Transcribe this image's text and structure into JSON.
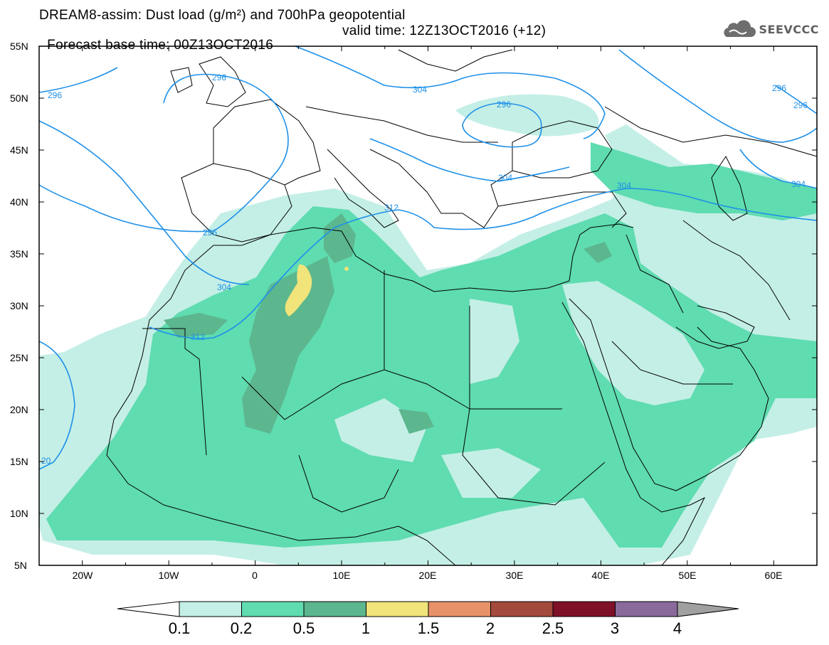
{
  "header": {
    "title_line1": "DREAM8-assim: Dust load (g/m²) and 700hPa geopotential",
    "forecast_base": "Forecast base time: 00Z13OCT2016",
    "valid_time": "valid time: 12Z13OCT2016 (+12)",
    "logo_text": "SEEVCCC"
  },
  "map": {
    "lon_range": [
      -25,
      65
    ],
    "lat_range": [
      5,
      55
    ],
    "lat_labels": [
      "55N",
      "50N",
      "45N",
      "40N",
      "35N",
      "30N",
      "25N",
      "20N",
      "15N",
      "10N",
      "5N"
    ],
    "lon_labels": [
      "20W",
      "10W",
      "0",
      "10E",
      "20E",
      "30E",
      "40E",
      "50E",
      "60E"
    ],
    "contour_color": "#1e90e8",
    "contour_labels": [
      "296",
      "296",
      "296",
      "296",
      "304",
      "304",
      "304",
      "312",
      "312",
      "304",
      "296",
      "296",
      "304",
      "20"
    ]
  },
  "colorbar": {
    "colors": [
      "#c4efe6",
      "#5fdcb0",
      "#5cb68e",
      "#f0e47a",
      "#e8926a",
      "#a44a3c",
      "#7e1028",
      "#8a6a9a",
      "#a0a0a0"
    ],
    "labels": [
      "0.1",
      "0.2",
      "0.5",
      "1",
      "1.5",
      "2",
      "2.5",
      "3",
      "4"
    ]
  }
}
